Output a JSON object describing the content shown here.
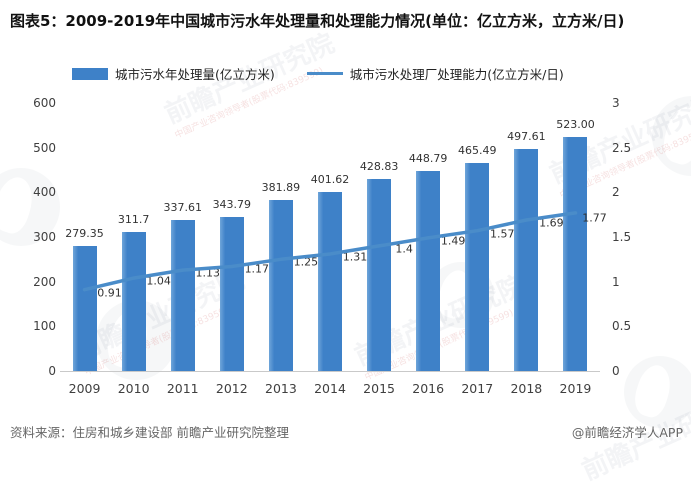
{
  "title": "图表5：2009-2019年中国城市污水年处理量和处理能力情况(单位：亿立方米，立方米/日)",
  "legend": [
    {
      "label": "城市污水年处理量(亿立方米)",
      "marker": "bar-swatch"
    },
    {
      "label": "城市污水处理厂处理能力(亿立方米/日)",
      "marker": "line-swatch"
    }
  ],
  "chart_data": {
    "type": "bar",
    "subtype": "bar+line combo, dual axis",
    "title": "2009-2019年中国城市污水年处理量和处理能力情况",
    "categories": [
      "2009",
      "2010",
      "2011",
      "2012",
      "2013",
      "2014",
      "2015",
      "2016",
      "2017",
      "2018",
      "2019"
    ],
    "series": [
      {
        "name": "城市污水年处理量(亿立方米)",
        "type": "bar",
        "axis": "left",
        "values": [
          279.35,
          311.7,
          337.61,
          343.79,
          381.89,
          401.62,
          428.83,
          448.79,
          465.49,
          497.61,
          523.0
        ],
        "labels": [
          "279.35",
          "311.7",
          "337.61",
          "343.79",
          "381.89",
          "401.62",
          "428.83",
          "448.79",
          "465.49",
          "497.61",
          "523.00"
        ]
      },
      {
        "name": "城市污水处理厂处理能力(亿立方米/日)",
        "type": "line",
        "axis": "right",
        "values": [
          0.91,
          1.04,
          1.13,
          1.17,
          1.25,
          1.31,
          1.4,
          1.49,
          1.57,
          1.69,
          1.77
        ],
        "labels": [
          "0.91",
          "1.04",
          "1.13",
          "1.17",
          "1.25",
          "1.31",
          "1.4",
          "1.49",
          "1.57",
          "1.69",
          "1.77"
        ]
      }
    ],
    "left_axis": {
      "min": 0,
      "max": 600,
      "ticks": [
        "600",
        "500",
        "400",
        "300",
        "200",
        "100",
        "0"
      ]
    },
    "right_axis": {
      "min": 0,
      "max": 3,
      "ticks": [
        "3",
        "2.5",
        "2",
        "1.5",
        "1",
        "0.5",
        "0"
      ]
    },
    "grid": false,
    "legend_position": "top"
  },
  "footer": {
    "source": "资料来源：住房和城乡建设部 前瞻产业研究院整理",
    "credit": "@前瞻经济学人APP"
  },
  "watermark": {
    "text": "前瞻产业研究院",
    "subtext": "中国产业咨询领导者(股票代码:839599)"
  },
  "colors": {
    "bar": "#3E81C8",
    "bar_edge_light": "#6FA5DA",
    "line": "#4A8CC9",
    "axis_text": "#3f3f3f",
    "footer_text": "#666666"
  }
}
